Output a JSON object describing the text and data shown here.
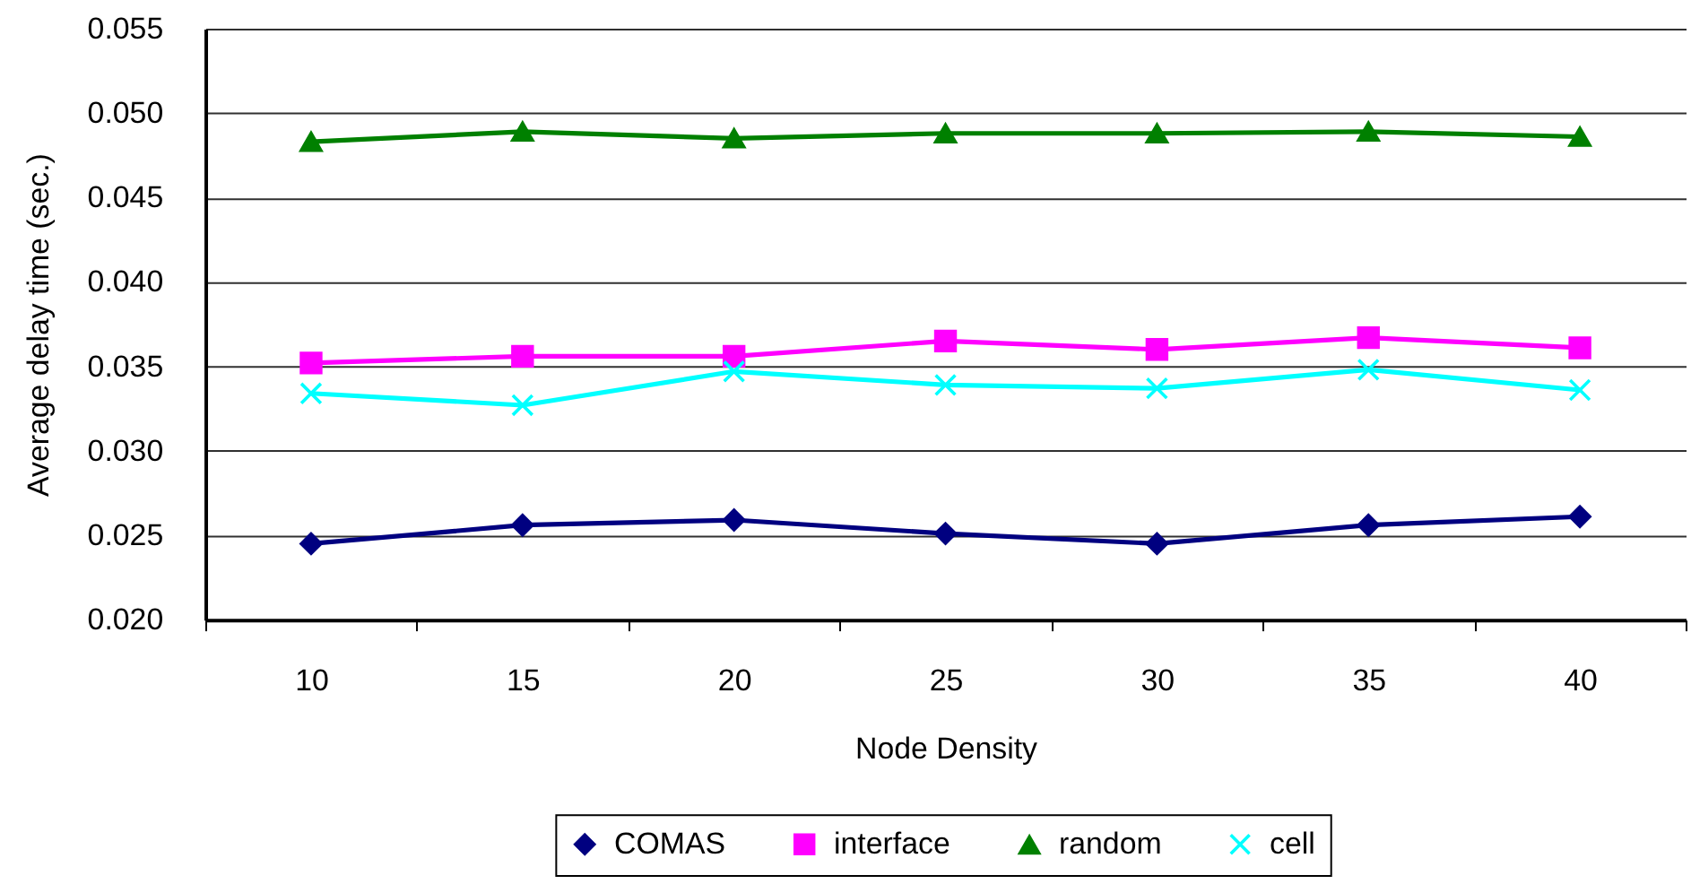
{
  "chart_data": {
    "type": "line",
    "xlabel": "Node Density",
    "ylabel": "Average delay time (sec.)",
    "categories": [
      "10",
      "15",
      "20",
      "25",
      "30",
      "35",
      "40"
    ],
    "series": [
      {
        "name": "COMAS",
        "color": "#000080",
        "marker": "diamond",
        "values": [
          0.0245,
          0.0256,
          0.0259,
          0.0251,
          0.0245,
          0.0256,
          0.0261
        ]
      },
      {
        "name": "interface",
        "color": "#ff00ff",
        "marker": "square",
        "values": [
          0.0352,
          0.0356,
          0.0356,
          0.0365,
          0.036,
          0.0367,
          0.0361
        ]
      },
      {
        "name": "random",
        "color": "#008000",
        "marker": "triangle",
        "values": [
          0.0483,
          0.0489,
          0.0485,
          0.0488,
          0.0488,
          0.0489,
          0.0486
        ]
      },
      {
        "name": "cell",
        "color": "#00ffff",
        "marker": "cross",
        "values": [
          0.0334,
          0.0327,
          0.0347,
          0.0339,
          0.0337,
          0.0348,
          0.0336
        ]
      }
    ],
    "ylim": [
      0.02,
      0.055
    ],
    "yticks": [
      {
        "value": 0.02,
        "label": "0.020"
      },
      0.025,
      {
        "value": 0.03,
        "label": "0.030"
      },
      0.035,
      {
        "value": 0.04,
        "label": "0.040"
      },
      0.045,
      {
        "value": 0.05,
        "label": "0.050"
      },
      0.055
    ],
    "grid": "y",
    "legend": "bottom",
    "line_style": "solid"
  }
}
